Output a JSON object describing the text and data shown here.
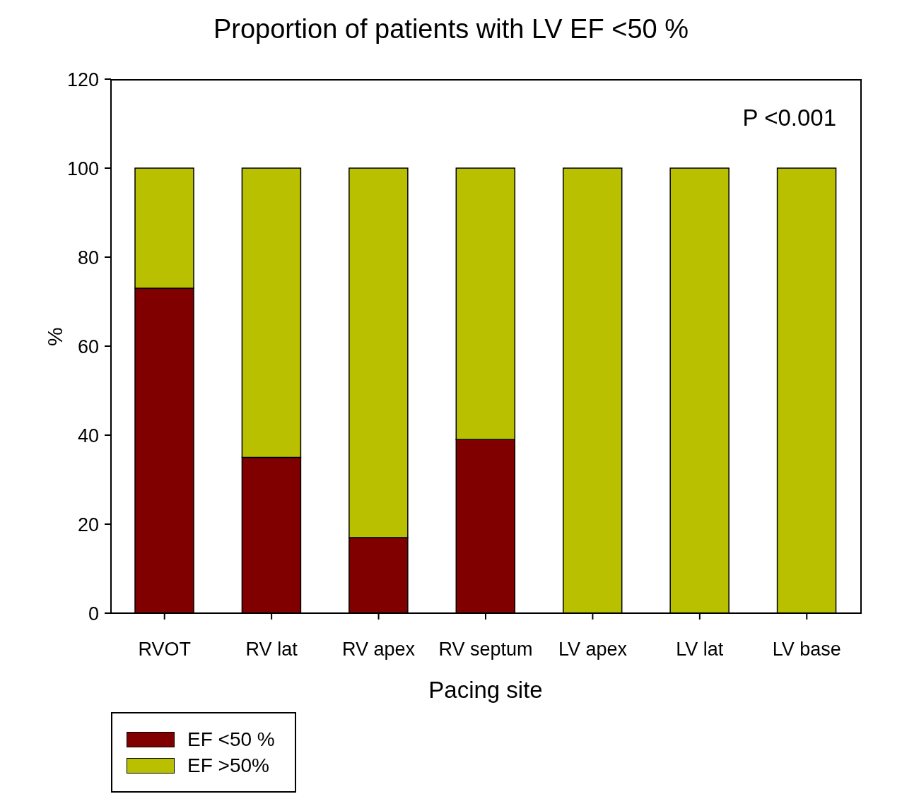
{
  "chart_data": {
    "type": "bar",
    "title": "Proportion of patients with LV EF <50 %",
    "xlabel": "Pacing site",
    "ylabel": "%",
    "categories": [
      "RVOT",
      "RV lat",
      "RV apex",
      "RV septum",
      "LV apex",
      "LV lat",
      "LV base"
    ],
    "stacked": true,
    "series": [
      {
        "name": "EF <50 %",
        "color": "#800000",
        "values": [
          73,
          35,
          17,
          39,
          0,
          0,
          0
        ]
      },
      {
        "name": "EF >50%",
        "color": "#b8c000",
        "values": [
          27,
          65,
          83,
          61,
          100,
          100,
          100
        ]
      }
    ],
    "ylim": [
      0,
      120
    ],
    "yticks": [
      0,
      20,
      40,
      60,
      80,
      100,
      120
    ],
    "legend": "bottom left",
    "annotations": [
      "P <0.001"
    ]
  }
}
